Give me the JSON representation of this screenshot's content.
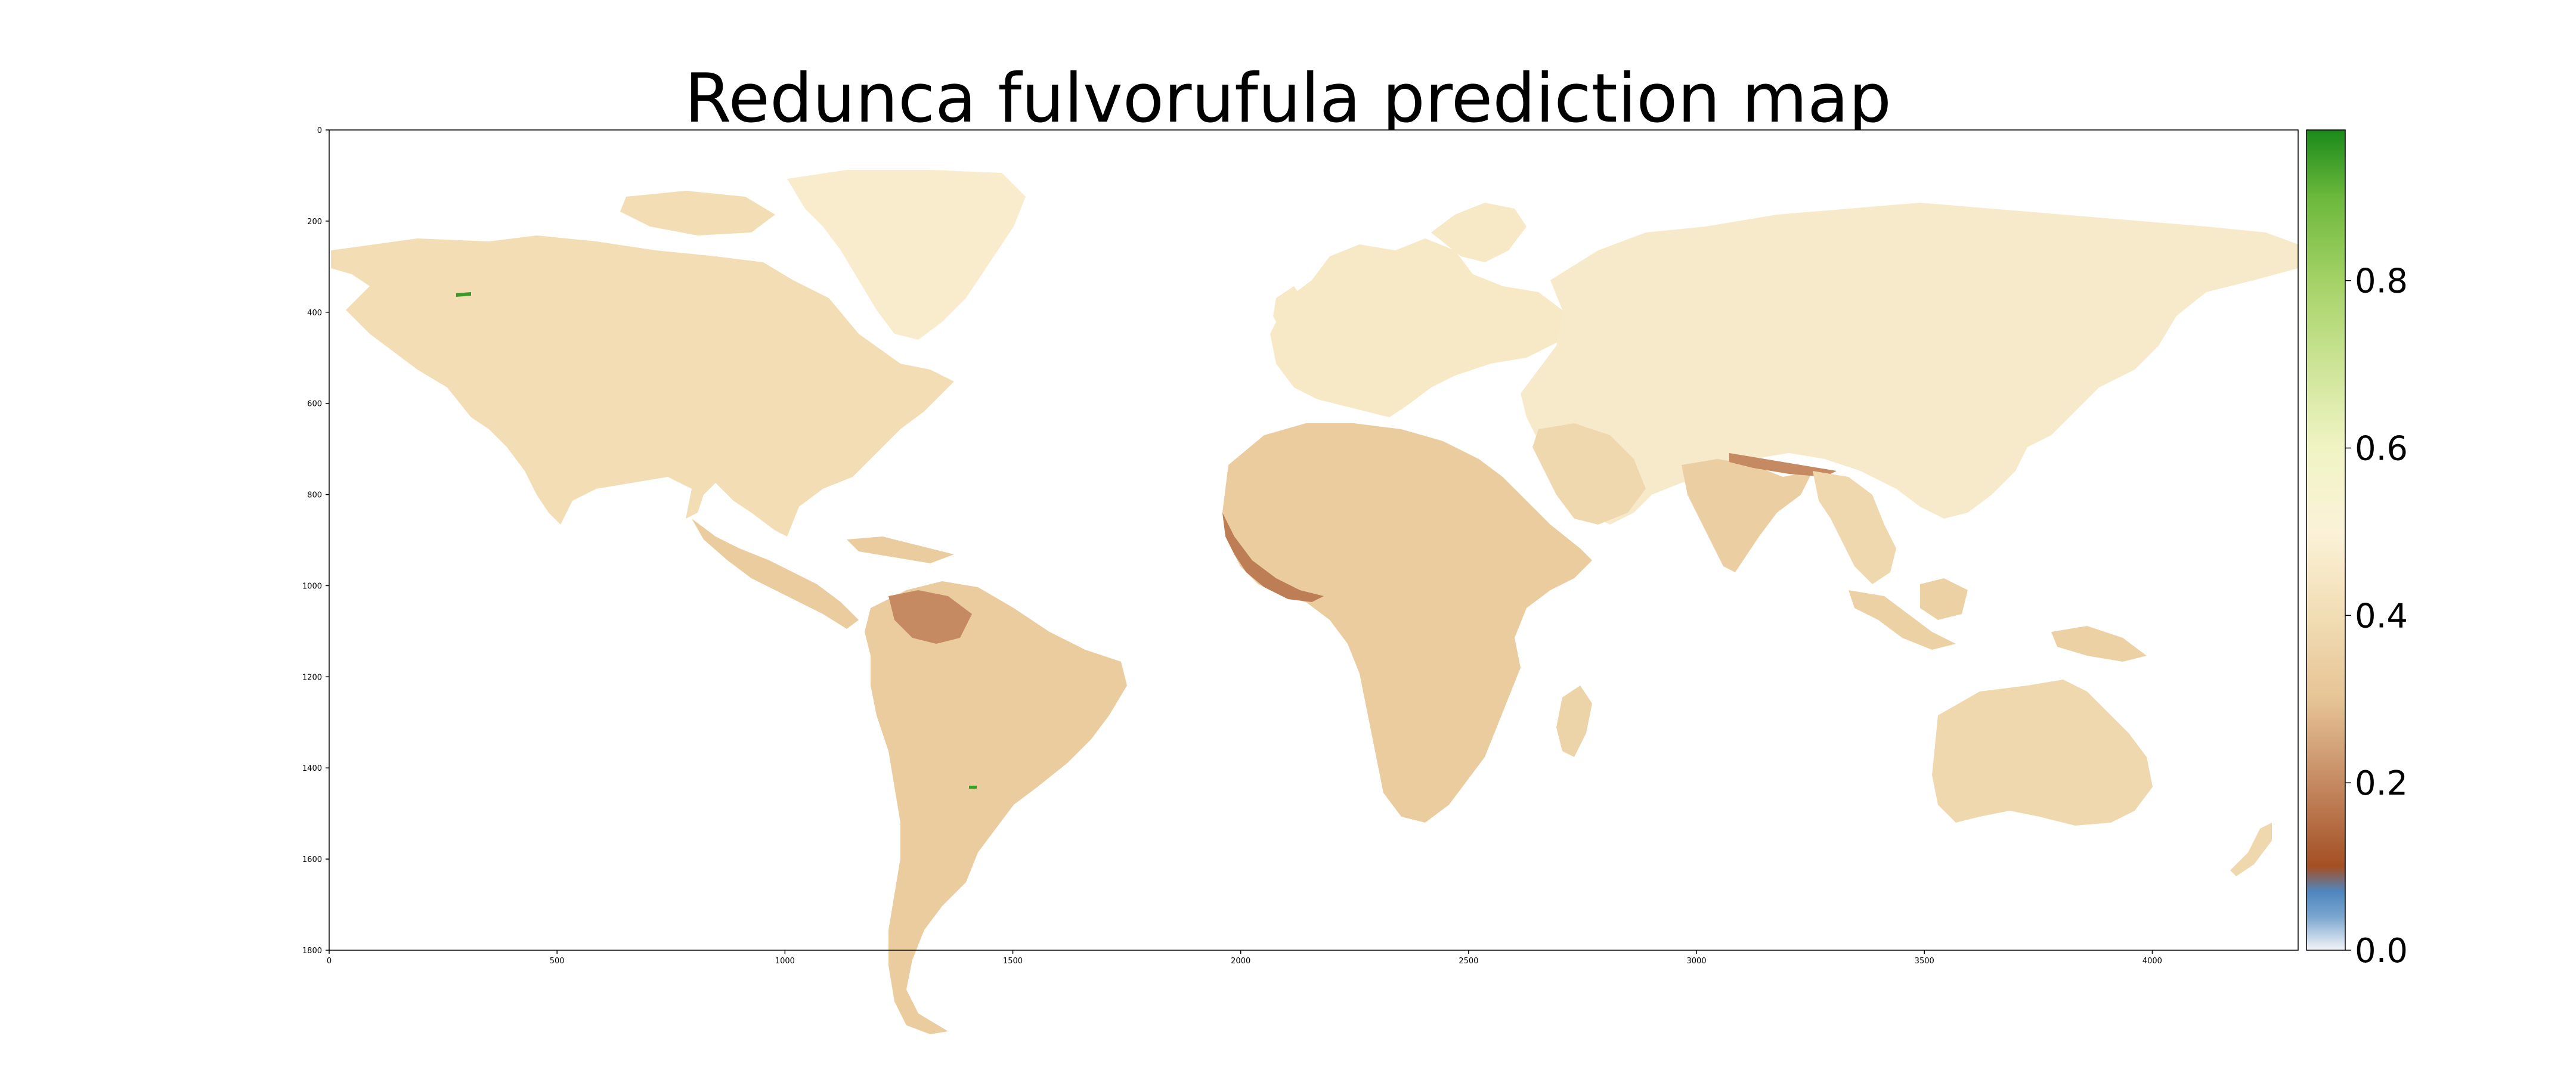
{
  "title": "Redunca fulvorufula prediction map",
  "chart_data": {
    "type": "heatmap",
    "title": "Redunca fulvorufula prediction map",
    "xlabel": "",
    "ylabel": "",
    "x_range": [
      0,
      4320
    ],
    "y_range": [
      0,
      1800
    ],
    "y_inverted": true,
    "x_ticks": [
      0,
      500,
      1000,
      1500,
      2000,
      2500,
      3000,
      3500,
      4000
    ],
    "y_ticks": [
      0,
      200,
      400,
      600,
      800,
      1000,
      1200,
      1400,
      1600,
      1800
    ],
    "colorbar": {
      "range": [
        0.0,
        0.98
      ],
      "ticks": [
        "0.0",
        "0.2",
        "0.4",
        "0.6",
        "0.8"
      ],
      "tick_values": [
        0.0,
        0.2,
        0.4,
        0.6,
        0.8
      ],
      "colormap": [
        {
          "value": 0.0,
          "color": "#f4f4f8"
        },
        {
          "value": 0.04,
          "color": "#7aa6cf"
        },
        {
          "value": 0.07,
          "color": "#4f86bf"
        },
        {
          "value": 0.1,
          "color": "#a44f23"
        },
        {
          "value": 0.2,
          "color": "#c58a62"
        },
        {
          "value": 0.3,
          "color": "#e6c496"
        },
        {
          "value": 0.4,
          "color": "#f2ddb4"
        },
        {
          "value": 0.5,
          "color": "#fbf2d8"
        },
        {
          "value": 0.6,
          "color": "#f0f4c4"
        },
        {
          "value": 0.7,
          "color": "#cce496"
        },
        {
          "value": 0.8,
          "color": "#a4d266"
        },
        {
          "value": 0.9,
          "color": "#6cb83c"
        },
        {
          "value": 0.98,
          "color": "#1a8a1a"
        }
      ]
    },
    "background_value": 0.0,
    "land_value_typical": 0.37,
    "regions": [
      {
        "name": "North America",
        "value": 0.4
      },
      {
        "name": "Greenland",
        "value": 0.47
      },
      {
        "name": "Central America",
        "value": 0.33
      },
      {
        "name": "South America",
        "value": 0.33
      },
      {
        "name": "Northern Andes / Amazon",
        "value": 0.2
      },
      {
        "name": "Europe",
        "value": 0.45
      },
      {
        "name": "Asia",
        "value": 0.46
      },
      {
        "name": "Arabia",
        "value": 0.38
      },
      {
        "name": "Indian subcontinent",
        "value": 0.34
      },
      {
        "name": "Himalaya foothills",
        "value": 0.2
      },
      {
        "name": "Southeast Asia",
        "value": 0.38
      },
      {
        "name": "Africa",
        "value": 0.33
      },
      {
        "name": "West Africa coast",
        "value": 0.18
      },
      {
        "name": "Madagascar",
        "value": 0.36
      },
      {
        "name": "Indonesia / New Guinea",
        "value": 0.35
      },
      {
        "name": "Australia",
        "value": 0.38
      },
      {
        "name": "New Zealand",
        "value": 0.38
      },
      {
        "name": "Alaska hotspot",
        "value": 0.95
      },
      {
        "name": "Paraguay hotspot",
        "value": 0.95
      }
    ]
  }
}
